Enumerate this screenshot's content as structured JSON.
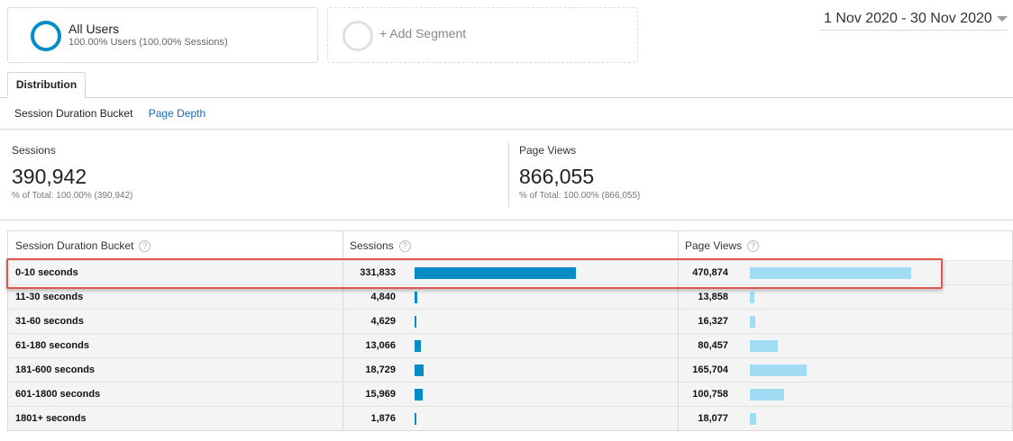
{
  "segments": {
    "all_users": {
      "title": "All Users",
      "subtitle": "100.00% Users (100.00% Sessions)"
    },
    "add_segment": {
      "label": "+ Add Segment"
    }
  },
  "date_range": "1 Nov 2020 - 30 Nov 2020",
  "tabs": [
    {
      "label": "Distribution"
    }
  ],
  "subnav": {
    "active": "Session Duration Bucket",
    "link": "Page Depth"
  },
  "summary": {
    "sessions": {
      "label": "Sessions",
      "value": "390,942",
      "pct": "% of Total: 100.00% (390,942)"
    },
    "page_views": {
      "label": "Page Views",
      "value": "866,055",
      "pct": "% of Total: 100.00% (866,055)"
    }
  },
  "table": {
    "headers": [
      "Session Duration Bucket",
      "Sessions",
      "Page Views"
    ],
    "rows": [
      {
        "bucket": "0-10 seconds",
        "sessions": "331,833",
        "page_views": "470,874",
        "sessions_share": 1.0,
        "page_views_share": 1.0
      },
      {
        "bucket": "11-30 seconds",
        "sessions": "4,840",
        "page_views": "13,858",
        "sessions_share": 0.0146,
        "page_views_share": 0.0294
      },
      {
        "bucket": "31-60 seconds",
        "sessions": "4,629",
        "page_views": "16,327",
        "sessions_share": 0.0139,
        "page_views_share": 0.0347
      },
      {
        "bucket": "61-180 seconds",
        "sessions": "13,066",
        "page_views": "80,457",
        "sessions_share": 0.0394,
        "page_views_share": 0.1709
      },
      {
        "bucket": "181-600 seconds",
        "sessions": "18,729",
        "page_views": "165,704",
        "sessions_share": 0.0564,
        "page_views_share": 0.3519
      },
      {
        "bucket": "601-1800 seconds",
        "sessions": "15,969",
        "page_views": "100,758",
        "sessions_share": 0.0481,
        "page_views_share": 0.214
      },
      {
        "bucket": "1801+ seconds",
        "sessions": "1,876",
        "page_views": "18,077",
        "sessions_share": 0.0057,
        "page_views_share": 0.0384
      }
    ]
  },
  "colors": {
    "sessions_bar": "#058dc7",
    "page_views_bar": "#a1dcf5",
    "highlight": "#e0554e",
    "link": "#1a6bb5"
  },
  "help_glyph": "?"
}
